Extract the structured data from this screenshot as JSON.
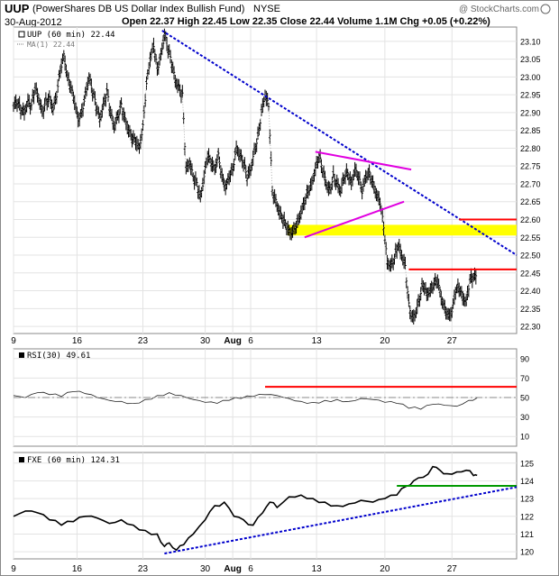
{
  "header": {
    "symbol": "UUP",
    "description": "(PowerShares DB US Dollar Index Bullish Fund)",
    "exchange": "NYSE",
    "date": "30-Aug-2012",
    "quote": "Open 22.37  High 22.45  Low 22.35  Close 22.44  Volume 1.1M  Chg +0.05 (+0.22%)",
    "brand": "@ StockCharts.com"
  },
  "chart_data": [
    {
      "type": "ohlc",
      "legend": [
        "UUP (60 min) 22.44",
        "MA(1) 22.44"
      ],
      "x_tick_labels": [
        "9",
        "16",
        "23",
        "30",
        "Aug",
        "6",
        "13",
        "20",
        "27"
      ],
      "y_tick_labels": [
        "23.10",
        "23.05",
        "23.00",
        "22.95",
        "22.90",
        "22.85",
        "22.80",
        "22.75",
        "22.70",
        "22.65",
        "22.60",
        "22.55",
        "22.50",
        "22.45",
        "22.40",
        "22.35",
        "22.30"
      ],
      "ylim": [
        22.28,
        23.14
      ],
      "close_path_hourly_approx": [
        [
          0,
          22.92
        ],
        [
          3,
          22.93
        ],
        [
          6,
          22.91
        ],
        [
          9,
          22.9
        ],
        [
          12,
          22.93
        ],
        [
          15,
          22.92
        ],
        [
          18,
          22.97
        ],
        [
          21,
          22.94
        ],
        [
          24,
          22.9
        ],
        [
          27,
          22.93
        ],
        [
          30,
          22.94
        ],
        [
          33,
          22.91
        ],
        [
          36,
          22.95
        ],
        [
          39,
          23.02
        ],
        [
          42,
          23.06
        ],
        [
          45,
          23.0
        ],
        [
          48,
          22.97
        ],
        [
          51,
          22.93
        ],
        [
          54,
          22.88
        ],
        [
          57,
          22.9
        ],
        [
          60,
          22.95
        ],
        [
          63,
          23.0
        ],
        [
          66,
          22.96
        ],
        [
          69,
          22.92
        ],
        [
          72,
          22.88
        ],
        [
          75,
          22.92
        ],
        [
          78,
          22.96
        ],
        [
          81,
          22.9
        ],
        [
          84,
          22.86
        ],
        [
          87,
          22.89
        ],
        [
          90,
          22.92
        ],
        [
          93,
          22.88
        ],
        [
          96,
          22.85
        ],
        [
          99,
          22.83
        ],
        [
          102,
          22.82
        ],
        [
          105,
          22.8
        ],
        [
          108,
          22.86
        ],
        [
          111,
          22.98
        ],
        [
          114,
          23.05
        ],
        [
          117,
          23.09
        ],
        [
          120,
          23.02
        ],
        [
          123,
          23.06
        ],
        [
          126,
          23.12
        ],
        [
          129,
          23.08
        ],
        [
          132,
          23.04
        ],
        [
          135,
          22.99
        ],
        [
          138,
          22.97
        ],
        [
          141,
          22.95
        ],
        [
          144,
          22.74
        ],
        [
          147,
          22.76
        ],
        [
          150,
          22.72
        ],
        [
          153,
          22.7
        ],
        [
          156,
          22.66
        ],
        [
          159,
          22.72
        ],
        [
          162,
          22.78
        ],
        [
          165,
          22.76
        ],
        [
          168,
          22.74
        ],
        [
          171,
          22.78
        ],
        [
          174,
          22.72
        ],
        [
          177,
          22.69
        ],
        [
          180,
          22.72
        ],
        [
          183,
          22.74
        ],
        [
          186,
          22.8
        ],
        [
          189,
          22.78
        ],
        [
          192,
          22.76
        ],
        [
          195,
          22.72
        ],
        [
          198,
          22.74
        ],
        [
          201,
          22.79
        ],
        [
          204,
          22.83
        ],
        [
          207,
          22.9
        ],
        [
          210,
          22.95
        ],
        [
          213,
          22.92
        ],
        [
          216,
          22.68
        ],
        [
          219,
          22.65
        ],
        [
          222,
          22.62
        ],
        [
          225,
          22.6
        ],
        [
          228,
          22.58
        ],
        [
          231,
          22.56
        ],
        [
          234,
          22.57
        ],
        [
          237,
          22.59
        ],
        [
          240,
          22.62
        ],
        [
          243,
          22.65
        ],
        [
          246,
          22.68
        ],
        [
          249,
          22.7
        ],
        [
          252,
          22.74
        ],
        [
          255,
          22.78
        ],
        [
          258,
          22.74
        ],
        [
          261,
          22.7
        ],
        [
          264,
          22.68
        ],
        [
          267,
          22.72
        ],
        [
          270,
          22.7
        ],
        [
          273,
          22.68
        ],
        [
          276,
          22.72
        ],
        [
          279,
          22.73
        ],
        [
          282,
          22.7
        ],
        [
          285,
          22.74
        ],
        [
          288,
          22.72
        ],
        [
          291,
          22.68
        ],
        [
          294,
          22.72
        ],
        [
          297,
          22.73
        ],
        [
          300,
          22.7
        ],
        [
          303,
          22.67
        ],
        [
          306,
          22.65
        ],
        [
          309,
          22.58
        ],
        [
          312,
          22.48
        ],
        [
          315,
          22.47
        ],
        [
          318,
          22.49
        ],
        [
          321,
          22.53
        ],
        [
          324,
          22.5
        ],
        [
          327,
          22.47
        ],
        [
          330,
          22.36
        ],
        [
          333,
          22.32
        ],
        [
          336,
          22.34
        ],
        [
          339,
          22.38
        ],
        [
          342,
          22.42
        ],
        [
          345,
          22.39
        ],
        [
          348,
          22.4
        ],
        [
          351,
          22.42
        ],
        [
          354,
          22.43
        ],
        [
          357,
          22.38
        ],
        [
          360,
          22.35
        ],
        [
          363,
          22.33
        ],
        [
          366,
          22.34
        ],
        [
          369,
          22.4
        ],
        [
          372,
          22.41
        ],
        [
          375,
          22.38
        ],
        [
          378,
          22.37
        ],
        [
          381,
          22.43
        ],
        [
          384,
          22.44
        ],
        [
          387,
          22.44
        ]
      ],
      "annotations": [
        {
          "kind": "line",
          "color": "#0000cc",
          "style": "dotted",
          "from": [
            124,
            23.13
          ],
          "to": [
            420,
            22.5
          ]
        },
        {
          "kind": "line",
          "color": "#e000e0",
          "from": [
            243,
            22.55
          ],
          "to": [
            326,
            22.65
          ]
        },
        {
          "kind": "line",
          "color": "#e000e0",
          "from": [
            252,
            22.79
          ],
          "to": [
            332,
            22.74
          ]
        },
        {
          "kind": "zone",
          "color": "#ffff00",
          "from": [
            229,
            22.555
          ],
          "to": [
            420,
            22.585
          ]
        },
        {
          "kind": "line",
          "color": "#ff0000",
          "from": [
            330,
            22.46
          ],
          "to": [
            420,
            22.46
          ]
        },
        {
          "kind": "line",
          "color": "#ff0000",
          "from": [
            372,
            22.6
          ],
          "to": [
            420,
            22.6
          ]
        }
      ]
    },
    {
      "type": "line",
      "legend": [
        "RSI(30) 49.61"
      ],
      "y_tick_labels": [
        "90",
        "70",
        "50",
        "30",
        "10"
      ],
      "ylim": [
        0,
        100
      ],
      "x_tick_labels": [
        "9",
        "16",
        "23",
        "30",
        "Aug",
        "6",
        "13",
        "20",
        "27"
      ],
      "series_approx": [
        [
          0,
          52
        ],
        [
          10,
          50
        ],
        [
          20,
          55
        ],
        [
          30,
          53
        ],
        [
          40,
          51
        ],
        [
          50,
          56
        ],
        [
          60,
          54
        ],
        [
          70,
          50
        ],
        [
          80,
          47
        ],
        [
          90,
          46
        ],
        [
          100,
          44
        ],
        [
          110,
          48
        ],
        [
          120,
          52
        ],
        [
          130,
          55
        ],
        [
          140,
          52
        ],
        [
          150,
          48
        ],
        [
          160,
          45
        ],
        [
          170,
          44
        ],
        [
          180,
          47
        ],
        [
          190,
          49
        ],
        [
          200,
          51
        ],
        [
          210,
          53
        ],
        [
          220,
          52
        ],
        [
          230,
          49
        ],
        [
          240,
          46
        ],
        [
          250,
          45
        ],
        [
          260,
          47
        ],
        [
          270,
          48
        ],
        [
          280,
          46
        ],
        [
          290,
          49
        ],
        [
          300,
          48
        ],
        [
          310,
          45
        ],
        [
          320,
          44
        ],
        [
          330,
          39
        ],
        [
          340,
          38
        ],
        [
          350,
          43
        ],
        [
          360,
          42
        ],
        [
          370,
          41
        ],
        [
          380,
          47
        ],
        [
          387,
          49.61
        ]
      ],
      "annotations": [
        {
          "kind": "hline",
          "value": 50,
          "color": "#888888",
          "style": "dashdot"
        },
        {
          "kind": "line",
          "color": "#ff0000",
          "from": [
            210,
            61
          ],
          "to": [
            420,
            61
          ]
        }
      ]
    },
    {
      "type": "line",
      "legend": [
        "FXE (60 min) 124.31"
      ],
      "y_tick_labels": [
        "125",
        "124",
        "123",
        "122",
        "121",
        "120"
      ],
      "ylim": [
        119.6,
        125.6
      ],
      "x_tick_labels": [
        "9",
        "16",
        "23",
        "30",
        "Aug",
        "6",
        "13",
        "20",
        "27"
      ],
      "series_approx": [
        [
          0,
          122.0
        ],
        [
          10,
          122.3
        ],
        [
          20,
          122.2
        ],
        [
          30,
          121.8
        ],
        [
          40,
          121.5
        ],
        [
          50,
          121.7
        ],
        [
          60,
          122.0
        ],
        [
          70,
          121.9
        ],
        [
          80,
          121.6
        ],
        [
          90,
          121.8
        ],
        [
          100,
          121.5
        ],
        [
          110,
          121.2
        ],
        [
          120,
          121.0
        ],
        [
          126,
          120.3
        ],
        [
          130,
          120.5
        ],
        [
          136,
          120.1
        ],
        [
          142,
          120.4
        ],
        [
          150,
          121.0
        ],
        [
          160,
          121.8
        ],
        [
          168,
          122.6
        ],
        [
          176,
          122.8
        ],
        [
          184,
          122.0
        ],
        [
          192,
          121.8
        ],
        [
          200,
          121.5
        ],
        [
          208,
          122.2
        ],
        [
          214,
          122.8
        ],
        [
          220,
          122.5
        ],
        [
          230,
          123.1
        ],
        [
          240,
          123.2
        ],
        [
          250,
          123.0
        ],
        [
          260,
          122.8
        ],
        [
          270,
          122.6
        ],
        [
          280,
          122.7
        ],
        [
          290,
          122.9
        ],
        [
          300,
          122.8
        ],
        [
          310,
          123.0
        ],
        [
          320,
          123.2
        ],
        [
          328,
          123.7
        ],
        [
          334,
          124.0
        ],
        [
          342,
          124.2
        ],
        [
          350,
          124.8
        ],
        [
          356,
          124.6
        ],
        [
          362,
          124.4
        ],
        [
          370,
          124.5
        ],
        [
          378,
          124.6
        ],
        [
          384,
          124.3
        ],
        [
          387,
          124.31
        ]
      ],
      "annotations": [
        {
          "kind": "line",
          "color": "#009900",
          "from": [
            320,
            123.72
          ],
          "to": [
            420,
            123.72
          ]
        },
        {
          "kind": "line",
          "color": "#0000cc",
          "style": "dotted",
          "from": [
            126,
            119.9
          ],
          "to": [
            420,
            123.65
          ]
        }
      ]
    }
  ]
}
